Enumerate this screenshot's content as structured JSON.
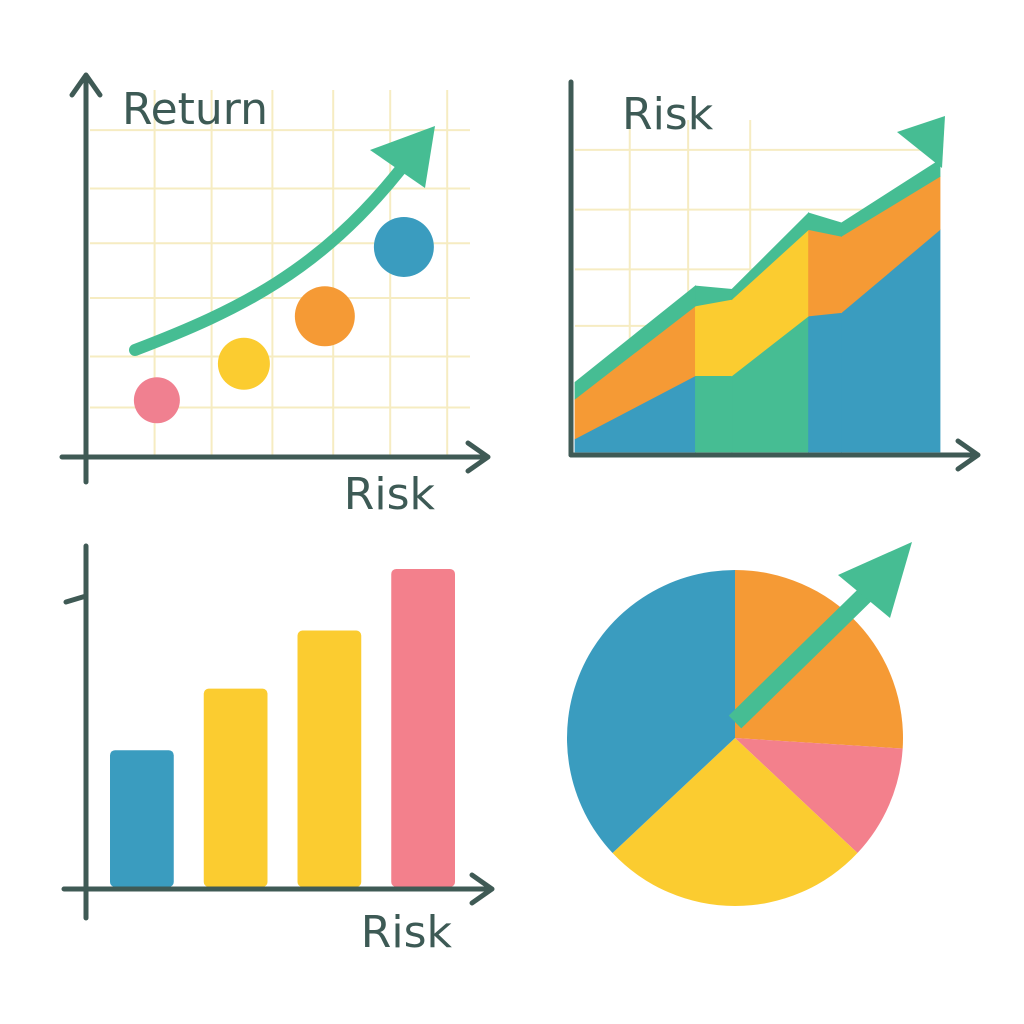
{
  "chart_data": [
    {
      "type": "scatter",
      "ylabel": "Return",
      "xlabel": "Risk",
      "x": [
        17.6,
        40.5,
        61.8,
        82.6
      ],
      "y": [
        15,
        25,
        38,
        57
      ],
      "sizes": [
        23,
        26,
        30,
        30
      ],
      "colors": [
        "#f08090",
        "#fbcc30",
        "#f59a35",
        "#3a9cbf"
      ],
      "xlim": [
        0,
        100
      ],
      "ylim": [
        0,
        100
      ],
      "xticks": [
        17,
        32,
        48,
        64,
        79,
        94
      ],
      "yticks": [
        13,
        27,
        43,
        58,
        73,
        89
      ],
      "grid": true
    },
    {
      "type": "area",
      "title": "Risk",
      "x": [
        0,
        33,
        43,
        64,
        73,
        100
      ],
      "xlim": [
        0,
        100
      ],
      "ylim": [
        0,
        100
      ],
      "xticks": [
        15,
        31,
        48
      ],
      "yticks": [
        38,
        55,
        73,
        91
      ],
      "grid": true,
      "series": [
        {
          "segment_colors": [
            "#3a9cbf",
            "#46bd93",
            "#46bd93",
            "#3a9cbf",
            "#3a9cbf"
          ],
          "values": [
            4,
            23,
            23,
            41,
            42,
            67
          ]
        },
        {
          "segment_colors": [
            "#f59a35",
            "#fbcc30",
            "#fbcc30",
            "#f59a35",
            "#f59a35"
          ],
          "values": [
            12,
            21,
            23,
            26,
            23,
            16
          ]
        },
        {
          "segment_colors": [
            "#46bd93",
            "#46bd93",
            "#46bd93",
            "#46bd93",
            "#46bd93"
          ],
          "values": [
            5,
            6,
            3,
            5,
            4,
            5
          ]
        }
      ]
    },
    {
      "type": "bar",
      "xlabel": "Risk",
      "categories": [
        null,
        null,
        null,
        null
      ],
      "values": [
        40,
        58,
        75,
        93
      ],
      "colors": [
        "#3a9cbf",
        "#fbcc30",
        "#fbcc30",
        "#f3808c"
      ],
      "ylim": [
        0,
        100
      ]
    },
    {
      "type": "pie",
      "values": [
        26,
        11,
        26,
        37
      ],
      "colors": [
        "#f59a35",
        "#f3808c",
        "#fbcc30",
        "#3a9cbf"
      ]
    }
  ]
}
